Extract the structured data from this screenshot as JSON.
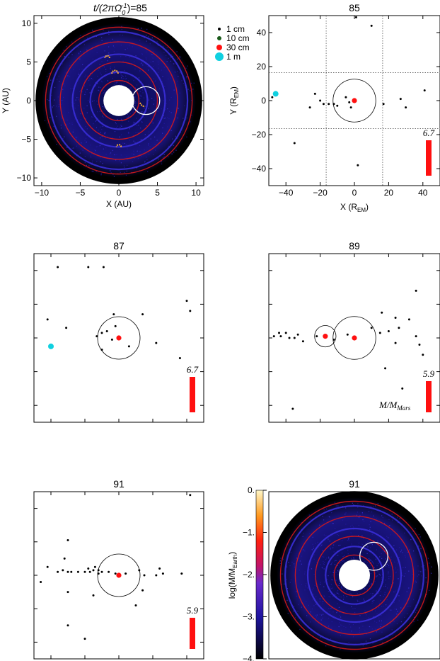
{
  "chart_data": [
    {
      "panel": "disk-left-top",
      "type": "scatter",
      "title_prefix": "t/(2πΩ",
      "title_sub": "0",
      "title_sup": "−1",
      "title_suffix": ")=85",
      "xlabel": "X (AU)",
      "ylabel": "Y (AU)",
      "xlim": [
        -11,
        11
      ],
      "ylim": [
        -11,
        11
      ],
      "xticks": [
        -10,
        -5,
        0,
        5,
        10
      ],
      "yticks": [
        -10,
        -5,
        0,
        5,
        10
      ],
      "xtick_labels": [
        "−10",
        "−5",
        "0",
        "5",
        "10"
      ],
      "ytick_labels": [
        "−10",
        "−5",
        "0",
        "5",
        "10"
      ],
      "disk_outer_radius": 10,
      "disk_inner_radius": 2,
      "rings": [
        2.6,
        3.7,
        5.0,
        6.0,
        7.6,
        8.9,
        9.5
      ],
      "focus_circle": {
        "x": 3.5,
        "y": 0,
        "r": 1.8
      },
      "arcs": [
        {
          "x": 3.5,
          "y": 0,
          "r": 0.8,
          "a0": 200,
          "a1": 260
        },
        {
          "x": -0.5,
          "y": 3.5,
          "r": 0.4,
          "a0": 0,
          "a1": 180
        },
        {
          "x": -1.5,
          "y": 5.5,
          "r": 0.3,
          "a0": 0,
          "a1": 180
        },
        {
          "x": 0,
          "y": -6.0,
          "r": 0.3,
          "a0": 0,
          "a1": 180
        }
      ]
    },
    {
      "panel": "scatter-85",
      "type": "scatter",
      "title": "85",
      "xlabel_main": "X (R",
      "xlabel_sub": "EM",
      "xlabel_end": ")",
      "ylabel_main": "Y (R",
      "ylabel_sub": "EM",
      "ylabel_end": ")",
      "xlim": [
        -50,
        50
      ],
      "ylim": [
        -50,
        50
      ],
      "xticks": [
        -40,
        -20,
        0,
        20,
        40
      ],
      "yticks": [
        -40,
        -20,
        0,
        20,
        40
      ],
      "xtick_labels": [
        "−40",
        "−20",
        "0",
        "20",
        "40"
      ],
      "ytick_labels": [
        "−40",
        "−20",
        "0",
        "20",
        "40"
      ],
      "grid_dotted": [
        -16.5,
        16.5
      ],
      "hill_circles": [
        {
          "x": 0,
          "y": 0,
          "r": 10
        }
      ],
      "mass_bar_label": "6.7",
      "mass_bar_value": 6.7,
      "points_small": [
        [
          1,
          49
        ],
        [
          10,
          44
        ],
        [
          -48,
          2
        ],
        [
          -23,
          4
        ],
        [
          -20,
          0
        ],
        [
          -18,
          -2
        ],
        [
          -15,
          -2
        ],
        [
          -12,
          -2
        ],
        [
          -10,
          -3
        ],
        [
          -5,
          2
        ],
        [
          -3,
          -1
        ],
        [
          -2,
          -4
        ],
        [
          -26,
          -4
        ],
        [
          -35,
          -25
        ],
        [
          2,
          -38
        ],
        [
          17,
          -2
        ],
        [
          27,
          1
        ],
        [
          30,
          -4
        ],
        [
          41,
          6
        ]
      ],
      "points_large": [
        [
          -46,
          4
        ]
      ],
      "points_red": [
        [
          0,
          0
        ]
      ]
    },
    {
      "panel": "scatter-87",
      "type": "scatter",
      "title": "87",
      "xlim": [
        -50,
        50
      ],
      "ylim": [
        -50,
        50
      ],
      "hill_circles": [
        {
          "x": 0,
          "y": 0,
          "r": 10
        }
      ],
      "mass_bar_label": "6.7",
      "mass_bar_value": 6.7,
      "points_small": [
        [
          -36,
          42
        ],
        [
          -18,
          42
        ],
        [
          -9,
          42
        ],
        [
          -42,
          11
        ],
        [
          -31,
          6
        ],
        [
          -13,
          1
        ],
        [
          -10,
          3
        ],
        [
          -7,
          4
        ],
        [
          -3,
          14
        ],
        [
          -2,
          7
        ],
        [
          -10,
          -7
        ],
        [
          -4,
          -1
        ],
        [
          6,
          -5
        ],
        [
          14,
          14
        ],
        [
          22,
          -3
        ],
        [
          36,
          -12
        ],
        [
          40,
          22
        ],
        [
          42,
          16
        ]
      ],
      "points_large": [
        [
          -40,
          -5
        ]
      ],
      "points_red": [
        [
          0,
          0
        ]
      ]
    },
    {
      "panel": "scatter-89",
      "type": "scatter",
      "title": "89",
      "xlim": [
        -50,
        50
      ],
      "ylim": [
        -50,
        50
      ],
      "hill_circles": [
        {
          "x": 0,
          "y": 0,
          "r": 10
        },
        {
          "x": -17,
          "y": 1,
          "r": 5
        }
      ],
      "mass_bar_label": "5.9",
      "mass_bar_value": 5.9,
      "mass_unit_main": "M/M",
      "mass_unit_sub": "Mars",
      "points_small": [
        [
          -47,
          1
        ],
        [
          -44,
          3
        ],
        [
          -40,
          3
        ],
        [
          -38,
          0
        ],
        [
          -35,
          0
        ],
        [
          -33,
          2
        ],
        [
          -30,
          -2
        ],
        [
          -22,
          1
        ],
        [
          -12,
          -1
        ],
        [
          -4,
          2
        ],
        [
          10,
          6
        ],
        [
          15,
          3
        ],
        [
          20,
          4
        ],
        [
          24,
          -3
        ],
        [
          26,
          6
        ],
        [
          32,
          11
        ],
        [
          36,
          1
        ],
        [
          38,
          -4
        ],
        [
          40,
          -10
        ],
        [
          36,
          28
        ],
        [
          24,
          12
        ],
        [
          16,
          15
        ],
        [
          18,
          -18
        ],
        [
          28,
          -30
        ],
        [
          -36,
          -42
        ],
        [
          -43,
          1
        ]
      ],
      "points_large": [],
      "points_red": [
        [
          0,
          0
        ],
        [
          -17,
          1
        ]
      ]
    },
    {
      "panel": "scatter-91",
      "type": "scatter",
      "title": "91",
      "xlim": [
        -50,
        50
      ],
      "ylim": [
        -50,
        50
      ],
      "hill_circles": [
        {
          "x": 0,
          "y": 0,
          "r": 10
        }
      ],
      "mass_bar_label": "5.9",
      "mass_bar_value": 5.9,
      "points_small": [
        [
          42,
          48
        ],
        [
          -30,
          21
        ],
        [
          -32,
          10
        ],
        [
          -42,
          5
        ],
        [
          -36,
          2
        ],
        [
          -33,
          3
        ],
        [
          -30,
          2
        ],
        [
          -28,
          2
        ],
        [
          -24,
          2
        ],
        [
          -20,
          2
        ],
        [
          -17,
          2
        ],
        [
          -15,
          3
        ],
        [
          -12,
          3
        ],
        [
          -10,
          2
        ],
        [
          -18,
          4
        ],
        [
          -14,
          5
        ],
        [
          -12,
          1
        ],
        [
          -6,
          2
        ],
        [
          -2,
          1
        ],
        [
          4,
          1
        ],
        [
          12,
          3
        ],
        [
          15,
          0
        ],
        [
          22,
          0
        ],
        [
          24,
          4
        ],
        [
          26,
          1
        ],
        [
          37,
          1
        ],
        [
          -46,
          -4
        ],
        [
          -30,
          -10
        ],
        [
          -15,
          -12
        ],
        [
          14,
          -9
        ],
        [
          -30,
          -30
        ],
        [
          -20,
          -38
        ],
        [
          10,
          -18
        ]
      ],
      "points_large": [],
      "points_red": [
        [
          0,
          0
        ]
      ]
    },
    {
      "panel": "disk-right-bottom",
      "type": "heatmap",
      "title": "91",
      "colorbar_label_main": "log(M/M",
      "colorbar_label_sub": "Earth",
      "colorbar_label_end": ")",
      "colorbar_range": [
        -4.0,
        0.0
      ],
      "colorbar_ticks": [
        0.0,
        -1.0,
        -2.0,
        -3.0,
        -4.0
      ],
      "colorbar_tick_labels": [
        "0.",
        "−1.",
        "−2.",
        "−3.",
        "−4."
      ],
      "disk_outer_radius": 10,
      "disk_inner_radius": 2,
      "rings": [
        2.6,
        3.7,
        5.0,
        6.0,
        7.6,
        8.9,
        9.5
      ],
      "focus_circle": {
        "x": 2.5,
        "y": 2.5,
        "r": 1.8
      }
    }
  ],
  "legend": {
    "items": [
      {
        "label": "1 cm",
        "color": "#000000",
        "size": 2
      },
      {
        "label": "10 cm",
        "color": "#1a5a1a",
        "size": 3
      },
      {
        "label": "30 cm",
        "color": "#ff1010",
        "size": 4
      },
      {
        "label": "1 m",
        "color": "#10d0e0",
        "size": 6
      }
    ]
  },
  "colors": {
    "ring": "#d81818",
    "ring_blue": "#3a2fd8",
    "dust": "#2418a8",
    "disk_bg": "#0a0a40",
    "disk_edge": "#000000",
    "arc": "#ffb030",
    "mass_bar": "#ff1010",
    "point_large": "#10d0e0"
  }
}
